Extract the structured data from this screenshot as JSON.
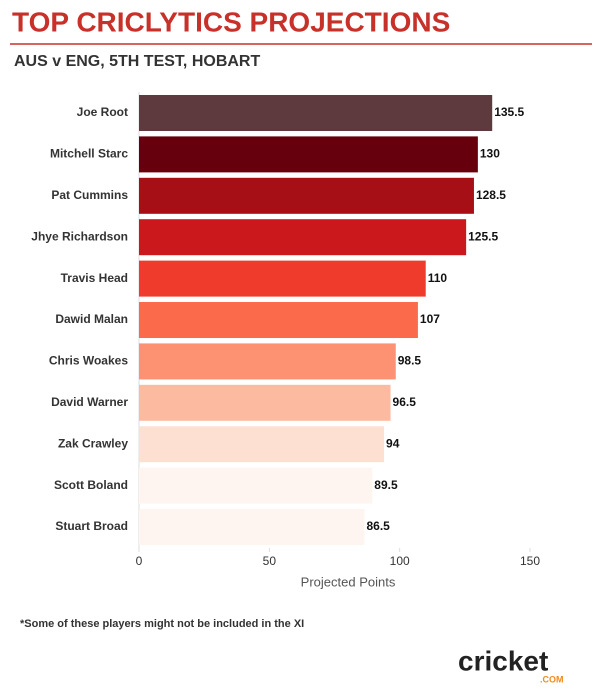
{
  "chart_data": {
    "type": "bar",
    "orientation": "horizontal",
    "title": "TOP CRICLYTICS PROJECTIONS",
    "subtitle": "AUS v ENG, 5TH TEST, HOBART",
    "x_label": "Projected Points",
    "categories": [
      "Joe Root",
      "Mitchell Starc",
      "Pat Cummins",
      "Jhye Richardson",
      "Travis Head",
      "Dawid Malan",
      "Chris Woakes",
      "David Warner",
      "Zak Crawley",
      "Scott Boland",
      "Stuart Broad"
    ],
    "values": [
      135.5,
      130,
      128.5,
      125.5,
      110,
      107,
      98.5,
      96.5,
      94,
      89.5,
      86.5
    ],
    "colors": [
      "#5e3a3e",
      "#67000d",
      "#a50f15",
      "#cb181d",
      "#ef3b2c",
      "#fb6a4a",
      "#fc9272",
      "#fcbba1",
      "#fee0d2",
      "#fff5f0",
      "#fff5f0"
    ],
    "xlim": [
      0,
      150
    ],
    "xticks": [
      0,
      50,
      100,
      150
    ],
    "footnote": "*Some of these players might not be included in the XI",
    "logo": "cricket",
    "logo_suffix": ".COM"
  }
}
